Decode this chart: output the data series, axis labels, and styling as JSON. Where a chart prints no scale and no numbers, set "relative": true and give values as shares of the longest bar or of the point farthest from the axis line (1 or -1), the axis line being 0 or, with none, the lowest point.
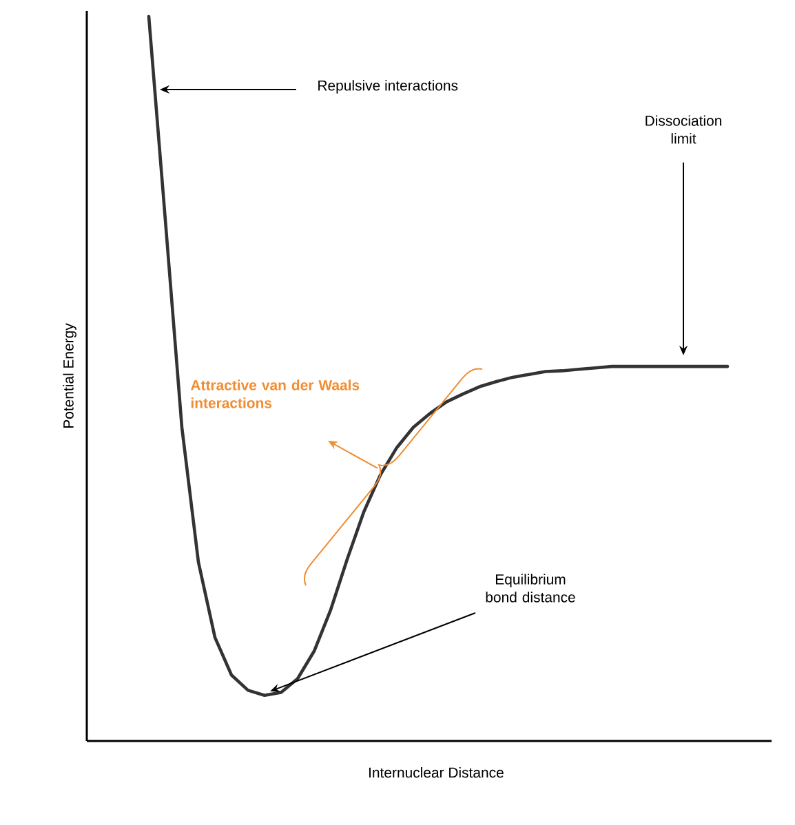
{
  "chart_data": {
    "type": "line",
    "relative": true,
    "xlabel": "Internuclear Distance",
    "ylabel": "Potential Energy",
    "categories": [
      null,
      null,
      null,
      null,
      null,
      null,
      null,
      null,
      null,
      null,
      null,
      null,
      null,
      null,
      null,
      null,
      null,
      null,
      null,
      null,
      null,
      null,
      null,
      null,
      null,
      null,
      null,
      null,
      null,
      null,
      null,
      null,
      null,
      null,
      null,
      null
    ],
    "values": [
      1,
      0.719,
      0.433,
      0.247,
      0.143,
      0.091,
      0.07,
      0.063,
      0.067,
      0.086,
      0.124,
      0.181,
      0.251,
      0.316,
      0.367,
      0.405,
      0.433,
      0.452,
      0.468,
      0.479,
      0.489,
      0.496,
      0.502,
      0.506,
      0.51,
      0.511,
      0.513,
      0.515,
      0.517,
      0.517,
      0.517,
      0.517,
      0.517,
      0.517,
      0.517,
      0.517
    ],
    "color": "#333333",
    "annotations": [
      "Repulsive interactions",
      "Dissociation limit",
      "Attractive van der Waals interactions",
      "Equilibrium bond distance"
    ]
  }
}
